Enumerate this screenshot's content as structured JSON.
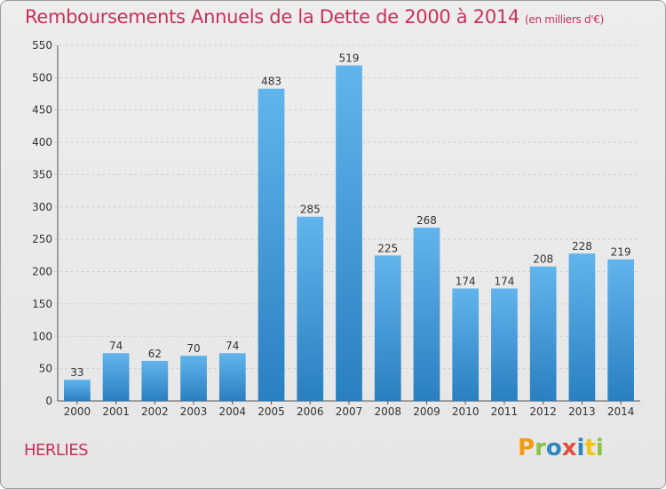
{
  "header": {
    "title": "Remboursements Annuels de la Dette de 2000 à 2014",
    "unit": "(en milliers d'€)"
  },
  "footer": {
    "city": "HERLIES",
    "logo_letters": [
      "P",
      "r",
      "o",
      "x",
      "i",
      "t",
      "i"
    ],
    "logo_colors": [
      "#f39c12",
      "#8bc34a",
      "#2e86c1",
      "#e74c3c",
      "#2e86c1",
      "#f1c40f",
      "#8bc34a"
    ]
  },
  "colors": {
    "bar_top": "#62b4ec",
    "bar_bottom": "#2a7fc0",
    "title": "#c8305a"
  },
  "chart_data": {
    "type": "bar",
    "title": "Remboursements Annuels de la Dette de 2000 à 2014",
    "xlabel": "",
    "ylabel": "",
    "ylim": [
      0,
      550
    ],
    "yticks": [
      0,
      50,
      100,
      150,
      200,
      250,
      300,
      350,
      400,
      450,
      500,
      550
    ],
    "grid": true,
    "categories": [
      "2000",
      "2001",
      "2002",
      "2003",
      "2004",
      "2005",
      "2006",
      "2007",
      "2008",
      "2009",
      "2010",
      "2011",
      "2012",
      "2013",
      "2014"
    ],
    "values": [
      33,
      74,
      62,
      70,
      74,
      483,
      285,
      519,
      225,
      268,
      174,
      174,
      208,
      228,
      219
    ]
  }
}
